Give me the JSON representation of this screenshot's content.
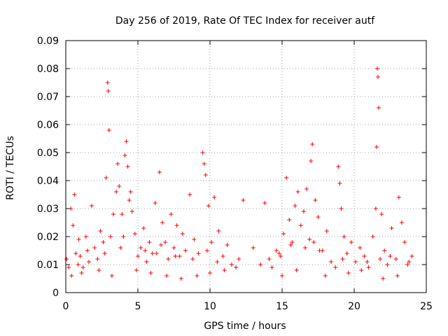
{
  "chart_data": {
    "type": "scatter",
    "title": "Day 256 of 2019, Rate Of TEC Index for receiver autf",
    "xlabel": "GPS time / hours",
    "ylabel": "ROTI / TECUs",
    "xlim": [
      0,
      25
    ],
    "ylim": [
      0,
      0.09
    ],
    "grid": true,
    "marker": "+",
    "series_color": "#ff0000",
    "x_ticks": [
      {
        "value": 0,
        "label": "0"
      },
      {
        "value": 5,
        "label": "5"
      },
      {
        "value": 10,
        "label": "10"
      },
      {
        "value": 15,
        "label": "15"
      },
      {
        "value": 20,
        "label": "20"
      },
      {
        "value": 25,
        "label": "25"
      }
    ],
    "y_ticks": [
      {
        "value": 0,
        "label": "0"
      },
      {
        "value": 0.01,
        "label": "0.01"
      },
      {
        "value": 0.02,
        "label": "0.02"
      },
      {
        "value": 0.03,
        "label": "0.03"
      },
      {
        "value": 0.04,
        "label": "0.04"
      },
      {
        "value": 0.05,
        "label": "0.05"
      },
      {
        "value": 0.06,
        "label": "0.06"
      },
      {
        "value": 0.07,
        "label": "0.07"
      },
      {
        "value": 0.08,
        "label": "0.08"
      },
      {
        "value": 0.09,
        "label": "0.09"
      }
    ],
    "series": [
      {
        "name": "ROTI",
        "x": [
          0.05,
          0.2,
          0.35,
          0.5,
          0.6,
          0.7,
          0.85,
          1.0,
          1.2,
          1.4,
          1.6,
          1.8,
          2.0,
          2.2,
          2.4,
          2.6,
          2.8,
          2.9,
          2.95,
          3.0,
          3.1,
          3.3,
          3.5,
          3.6,
          3.7,
          3.9,
          4.1,
          4.2,
          4.3,
          4.4,
          4.5,
          4.6,
          4.8,
          5.0,
          5.2,
          5.4,
          5.6,
          5.8,
          6.0,
          6.2,
          6.5,
          6.7,
          6.9,
          7.1,
          7.3,
          7.5,
          7.7,
          7.9,
          8.1,
          8.3,
          8.6,
          8.9,
          9.2,
          9.5,
          9.6,
          9.7,
          9.9,
          10.1,
          10.3,
          10.6,
          10.9,
          11.2,
          11.5,
          11.8,
          12.0,
          12.3,
          13.0,
          13.5,
          13.8,
          14.1,
          14.3,
          14.6,
          14.9,
          15.1,
          15.3,
          15.5,
          15.7,
          15.9,
          16.1,
          16.3,
          16.5,
          16.7,
          16.9,
          17.0,
          17.1,
          17.3,
          17.5,
          17.8,
          18.1,
          18.4,
          18.7,
          18.9,
          19.0,
          19.1,
          19.3,
          19.5,
          19.8,
          20.1,
          20.4,
          20.7,
          21.0,
          21.3,
          21.5,
          21.55,
          21.6,
          21.65,
          21.7,
          21.9,
          22.1,
          22.3,
          22.6,
          22.9,
          23.1,
          23.3,
          23.5,
          23.8,
          24.0,
          0.4,
          1.1,
          2.3,
          3.2,
          4.9,
          5.9,
          7.0,
          8.0,
          9.1,
          10.0,
          11.0,
          15.0,
          16.0,
          18.0,
          19.6,
          20.5,
          22.0,
          23.0,
          1.5,
          2.7,
          3.8,
          5.5,
          6.3,
          7.6,
          8.8,
          10.5,
          15.6,
          16.6,
          17.6,
          19.2,
          20.9,
          22.5,
          23.7,
          0.9,
          4.0,
          6.6,
          9.8,
          14.8,
          17.2,
          21.8
        ],
        "y": [
          0.012,
          0.009,
          0.03,
          0.024,
          0.035,
          0.014,
          0.01,
          0.013,
          0.009,
          0.02,
          0.011,
          0.031,
          0.016,
          0.012,
          0.022,
          0.018,
          0.041,
          0.075,
          0.072,
          0.058,
          0.02,
          0.028,
          0.036,
          0.046,
          0.038,
          0.028,
          0.049,
          0.054,
          0.045,
          0.033,
          0.036,
          0.029,
          0.021,
          0.013,
          0.016,
          0.023,
          0.011,
          0.018,
          0.014,
          0.032,
          0.043,
          0.025,
          0.018,
          0.012,
          0.028,
          0.016,
          0.024,
          0.013,
          0.021,
          0.015,
          0.035,
          0.019,
          0.014,
          0.05,
          0.046,
          0.042,
          0.031,
          0.018,
          0.034,
          0.022,
          0.013,
          0.017,
          0.01,
          0.009,
          0.012,
          0.033,
          0.016,
          0.01,
          0.032,
          0.012,
          0.009,
          0.015,
          0.013,
          0.021,
          0.041,
          0.026,
          0.018,
          0.031,
          0.036,
          0.024,
          0.029,
          0.037,
          0.019,
          0.047,
          0.053,
          0.033,
          0.027,
          0.015,
          0.022,
          0.011,
          0.009,
          0.045,
          0.039,
          0.03,
          0.02,
          0.014,
          0.018,
          0.011,
          0.016,
          0.013,
          0.009,
          0.02,
          0.03,
          0.052,
          0.08,
          0.077,
          0.066,
          0.028,
          0.015,
          0.01,
          0.023,
          0.012,
          0.034,
          0.025,
          0.018,
          0.011,
          0.013,
          0.006,
          0.007,
          0.008,
          0.006,
          0.008,
          0.007,
          0.006,
          0.005,
          0.006,
          0.007,
          0.008,
          0.006,
          0.008,
          0.006,
          0.007,
          0.008,
          0.005,
          0.006,
          0.015,
          0.014,
          0.016,
          0.015,
          0.014,
          0.013,
          0.012,
          0.011,
          0.017,
          0.016,
          0.015,
          0.012,
          0.011,
          0.013,
          0.01,
          0.019,
          0.02,
          0.017,
          0.015,
          0.014,
          0.018,
          0.012
        ]
      }
    ]
  }
}
